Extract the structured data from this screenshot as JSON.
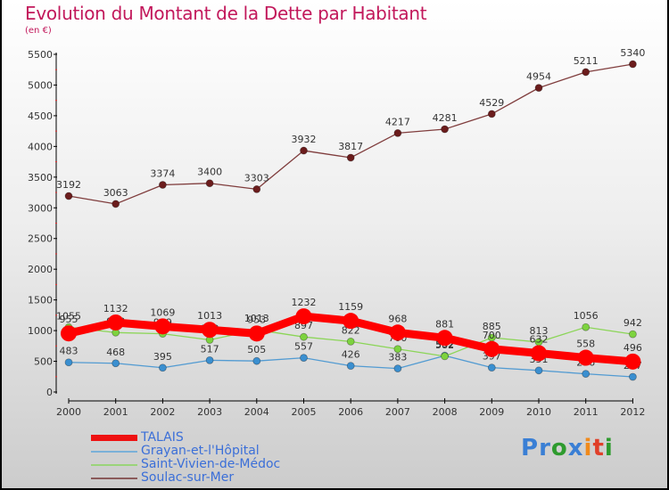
{
  "header": {
    "title": "Evolution du Montant de la Dette par Habitant",
    "subtitle": "(en €)"
  },
  "logo": {
    "letters": [
      {
        "ch": "P",
        "color": "#3a7fd5"
      },
      {
        "ch": "r",
        "color": "#3a7fd5"
      },
      {
        "ch": "o",
        "color": "#2e9b2e"
      },
      {
        "ch": "x",
        "color": "#3a7fd5"
      },
      {
        "ch": "i",
        "color": "#f08a1c"
      },
      {
        "ch": "t",
        "color": "#e0402a"
      },
      {
        "ch": "i",
        "color": "#2e9b2e"
      }
    ]
  },
  "chart_data": {
    "type": "line",
    "title": "Evolution du Montant de la Dette par Habitant",
    "subtitle": "(en €)",
    "xlabel": "",
    "ylabel": "",
    "x": [
      "2000",
      "2001",
      "2002",
      "2003",
      "2004",
      "2005",
      "2006",
      "2007",
      "2008",
      "2009",
      "2010",
      "2011",
      "2012"
    ],
    "ylim": [
      0,
      5500
    ],
    "yticks": [
      0,
      500,
      1000,
      1500,
      2000,
      2500,
      3000,
      3500,
      4000,
      4500,
      5000,
      5500
    ],
    "grid": false,
    "legend_position": "bottom-left",
    "series": [
      {
        "name": "TALAIS",
        "color": "#ff0000",
        "values": [
          955,
          1132,
          1069,
          1013,
          953,
          1232,
          1159,
          968,
          881,
          700,
          632,
          558,
          496
        ]
      },
      {
        "name": "Grayan-et-l'Hôpital",
        "color": "#3a8fd0",
        "values": [
          483,
          468,
          395,
          517,
          505,
          557,
          426,
          383,
          592,
          397,
          351,
          296,
          247
        ]
      },
      {
        "name": "Saint-Vivien-de-Médoc",
        "color": "#7dd33f",
        "values": [
          1055,
          968,
          949,
          849,
          1013,
          897,
          822,
          700,
          582,
          885,
          813,
          1056,
          942
        ]
      },
      {
        "name": "Soulac-sur-Mer",
        "color": "#6b1c1c",
        "values": [
          3192,
          3063,
          3374,
          3400,
          3303,
          3932,
          3817,
          4217,
          4281,
          4529,
          4954,
          5211,
          5340
        ]
      }
    ]
  },
  "legend": {
    "items": [
      {
        "label": "TALAIS",
        "color": "#ee1111"
      },
      {
        "label": "Grayan-et-l'Hôpital",
        "color": "#7ab0d8"
      },
      {
        "label": "Saint-Vivien-de-Médoc",
        "color": "#9ad47a"
      },
      {
        "label": "Soulac-sur-Mer",
        "color": "#8a5a5a"
      }
    ]
  }
}
